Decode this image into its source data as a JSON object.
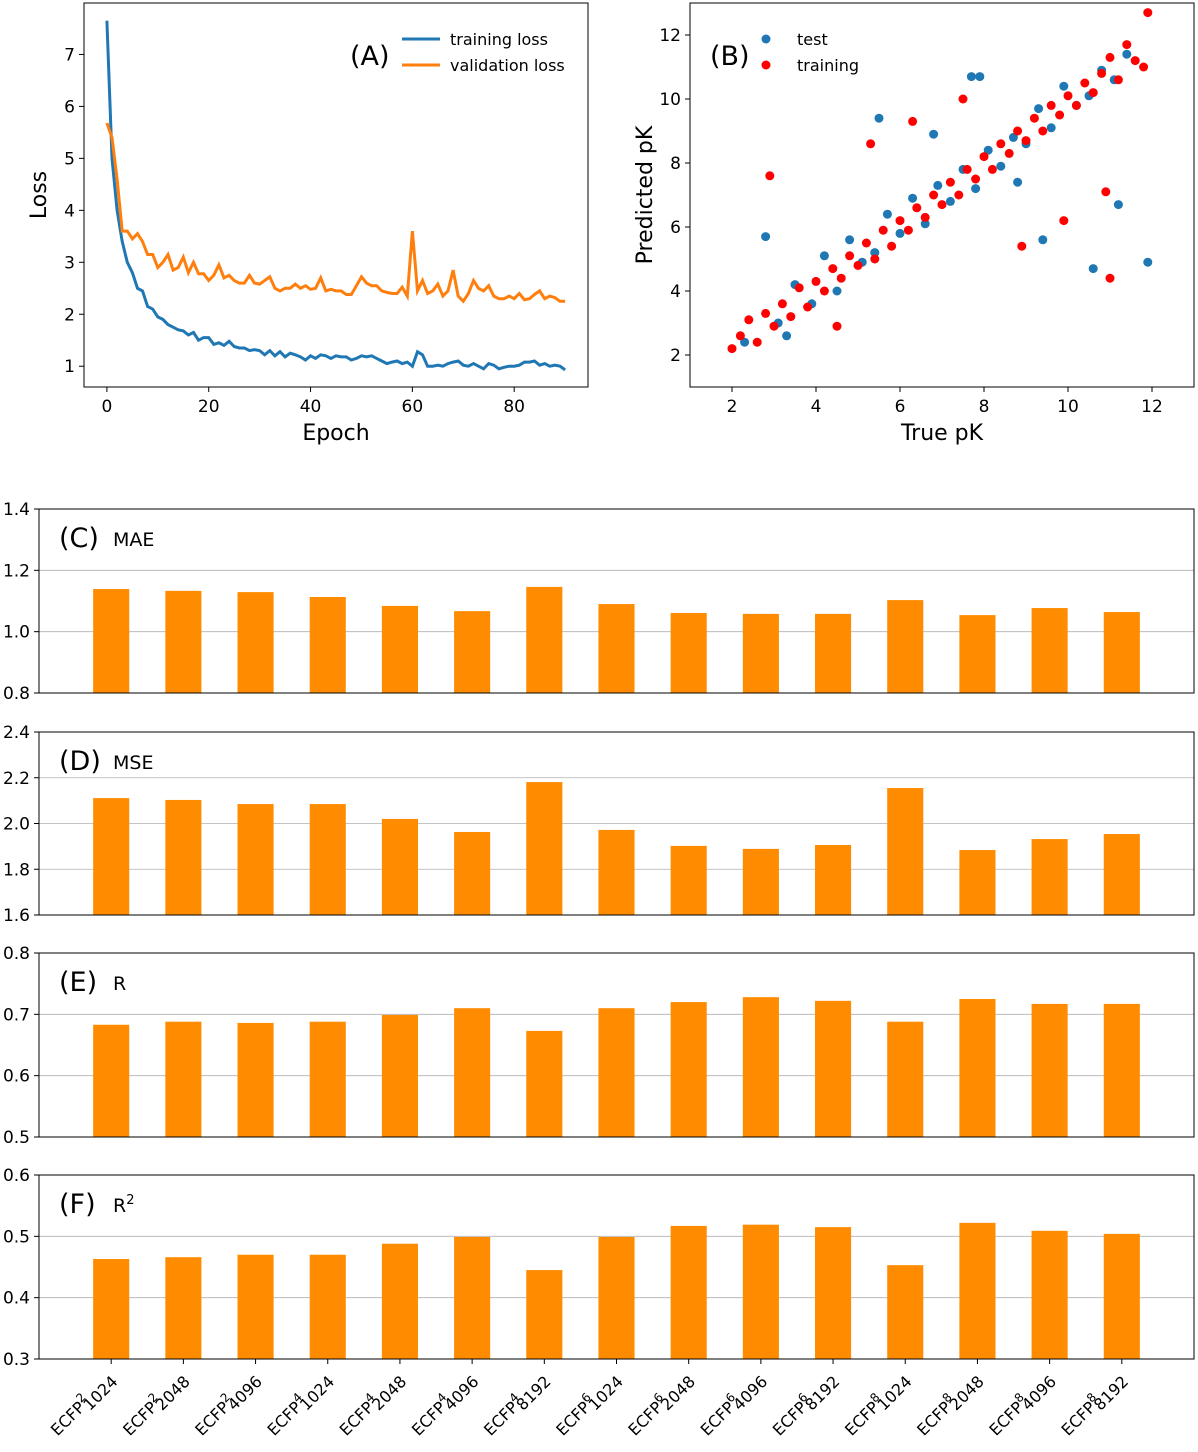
{
  "chart_data": [
    {
      "type": "line",
      "annotation": "(A)",
      "x_label": "Epoch",
      "y_label": "Loss",
      "legend": "upper right",
      "x": [
        0,
        1,
        2,
        3,
        4,
        5,
        6,
        7,
        8,
        9,
        10,
        11,
        12,
        13,
        14,
        15,
        16,
        17,
        18,
        19,
        20,
        21,
        22,
        23,
        24,
        25,
        26,
        27,
        28,
        29,
        30,
        31,
        32,
        33,
        34,
        35,
        36,
        37,
        38,
        39,
        40,
        41,
        42,
        43,
        44,
        45,
        46,
        47,
        48,
        49,
        50,
        51,
        52,
        53,
        54,
        55,
        56,
        57,
        58,
        59,
        60,
        61,
        62,
        63,
        64,
        65,
        66,
        67,
        68,
        69,
        70,
        71,
        72,
        73,
        74,
        75,
        76,
        77,
        78,
        79,
        80,
        81,
        82,
        83,
        84,
        85,
        86,
        87,
        88,
        89,
        90
      ],
      "series": [
        {
          "name": "training loss",
          "color": "#1f77b4",
          "values": [
            7.65,
            5.0,
            4.0,
            3.4,
            3.0,
            2.8,
            2.5,
            2.45,
            2.15,
            2.1,
            1.95,
            1.9,
            1.8,
            1.75,
            1.7,
            1.68,
            1.6,
            1.65,
            1.5,
            1.55,
            1.55,
            1.42,
            1.45,
            1.4,
            1.48,
            1.38,
            1.35,
            1.35,
            1.3,
            1.32,
            1.3,
            1.22,
            1.3,
            1.2,
            1.28,
            1.18,
            1.25,
            1.22,
            1.18,
            1.12,
            1.2,
            1.15,
            1.22,
            1.2,
            1.15,
            1.2,
            1.18,
            1.18,
            1.12,
            1.15,
            1.2,
            1.18,
            1.2,
            1.15,
            1.1,
            1.05,
            1.08,
            1.1,
            1.05,
            1.08,
            1.0,
            1.28,
            1.22,
            1.0,
            1.0,
            1.02,
            1.0,
            1.05,
            1.08,
            1.1,
            1.02,
            1.0,
            1.05,
            1.0,
            0.95,
            1.05,
            1.02,
            0.95,
            0.98,
            1.0,
            1.0,
            1.02,
            1.08,
            1.08,
            1.1,
            1.02,
            1.05,
            1.0,
            1.02,
            1.0,
            0.93
          ]
        },
        {
          "name": "validation loss",
          "color": "#ff7f0e",
          "values": [
            5.68,
            5.4,
            4.6,
            3.6,
            3.6,
            3.45,
            3.55,
            3.4,
            3.15,
            3.15,
            2.9,
            3.0,
            3.15,
            2.85,
            2.9,
            3.1,
            2.8,
            3.0,
            2.78,
            2.78,
            2.65,
            2.75,
            2.95,
            2.7,
            2.75,
            2.65,
            2.6,
            2.6,
            2.75,
            2.6,
            2.58,
            2.65,
            2.72,
            2.5,
            2.45,
            2.5,
            2.5,
            2.58,
            2.5,
            2.55,
            2.48,
            2.5,
            2.7,
            2.45,
            2.48,
            2.45,
            2.45,
            2.38,
            2.38,
            2.55,
            2.72,
            2.6,
            2.55,
            2.55,
            2.45,
            2.42,
            2.4,
            2.4,
            2.52,
            2.35,
            3.6,
            2.45,
            2.65,
            2.4,
            2.45,
            2.58,
            2.35,
            2.45,
            2.85,
            2.35,
            2.25,
            2.4,
            2.65,
            2.5,
            2.45,
            2.55,
            2.35,
            2.3,
            2.3,
            2.35,
            2.3,
            2.4,
            2.28,
            2.3,
            2.38,
            2.45,
            2.3,
            2.35,
            2.32,
            2.25,
            2.25
          ]
        }
      ],
      "xlim": [
        -4.5,
        94.5
      ],
      "xticks": [
        0,
        20,
        40,
        60,
        80
      ],
      "ylim": [
        0.6,
        7.99
      ],
      "yticks": [
        1,
        2,
        3,
        4,
        5,
        6,
        7
      ]
    },
    {
      "type": "scatter",
      "annotation": "(B)",
      "x_label": "True pK",
      "y_label": "Predicted pK",
      "legend": "upper left",
      "series": [
        {
          "name": "test",
          "color": "#1f77b4",
          "x": [
            2.3,
            2.8,
            3.1,
            3.5,
            3.9,
            4.2,
            4.5,
            4.8,
            5.1,
            5.4,
            5.7,
            6.0,
            6.3,
            6.6,
            6.9,
            7.2,
            7.5,
            7.8,
            8.1,
            8.4,
            8.7,
            9.0,
            9.3,
            9.6,
            9.9,
            10.2,
            10.5,
            10.8,
            11.1,
            11.4,
            11.9,
            7.7,
            7.9,
            5.5,
            9.4,
            10.6,
            11.2,
            3.3,
            6.8,
            8.8
          ],
          "values": [
            2.4,
            5.7,
            3.0,
            4.2,
            3.6,
            5.1,
            4.0,
            5.6,
            4.9,
            5.2,
            6.4,
            5.8,
            6.9,
            6.1,
            7.3,
            6.8,
            7.8,
            7.2,
            8.4,
            7.9,
            8.8,
            8.6,
            9.7,
            9.1,
            10.4,
            9.8,
            10.1,
            10.9,
            10.6,
            11.4,
            4.9,
            10.7,
            10.7,
            9.4,
            5.6,
            4.7,
            6.7,
            2.6,
            8.9,
            7.4
          ]
        },
        {
          "name": "training",
          "color": "#ff0000",
          "x": [
            2.0,
            2.2,
            2.4,
            2.6,
            2.8,
            3.0,
            3.2,
            3.4,
            3.6,
            3.8,
            4.0,
            4.2,
            4.4,
            4.6,
            4.8,
            5.0,
            5.2,
            5.4,
            5.6,
            5.8,
            6.0,
            6.2,
            6.4,
            6.6,
            6.8,
            7.0,
            7.2,
            7.4,
            7.6,
            7.8,
            8.0,
            8.2,
            8.4,
            8.6,
            8.8,
            9.0,
            9.2,
            9.4,
            9.6,
            9.8,
            10.0,
            10.2,
            10.4,
            10.6,
            10.8,
            11.0,
            11.2,
            11.4,
            11.6,
            11.8,
            11.9,
            11.0,
            2.9,
            6.3,
            8.9,
            4.5,
            10.9,
            7.5,
            5.3,
            9.9
          ],
          "values": [
            2.2,
            2.6,
            3.1,
            2.4,
            3.3,
            2.9,
            3.6,
            3.2,
            4.1,
            3.5,
            4.3,
            4.0,
            4.7,
            4.4,
            5.1,
            4.8,
            5.5,
            5.0,
            5.9,
            5.4,
            6.2,
            5.9,
            6.6,
            6.3,
            7.0,
            6.7,
            7.4,
            7.0,
            7.8,
            7.5,
            8.2,
            7.8,
            8.6,
            8.3,
            9.0,
            8.7,
            9.4,
            9.0,
            9.8,
            9.5,
            10.1,
            9.8,
            10.5,
            10.2,
            10.8,
            11.3,
            10.6,
            11.7,
            11.2,
            11.0,
            12.7,
            4.4,
            7.6,
            9.3,
            5.4,
            2.9,
            7.1,
            10.0,
            8.6,
            6.2
          ]
        }
      ],
      "xlim": [
        1.0,
        13.0
      ],
      "xticks": [
        2,
        4,
        6,
        8,
        10,
        12
      ],
      "ylim": [
        1.0,
        13.0
      ],
      "yticks": [
        2,
        4,
        6,
        8,
        10,
        12
      ]
    },
    {
      "type": "bar",
      "panel_label": "(C)",
      "metric": "MAE",
      "color": "#ff8c00",
      "grid": true,
      "values": [
        1.139,
        1.133,
        1.129,
        1.113,
        1.084,
        1.067,
        1.146,
        1.09,
        1.061,
        1.058,
        1.058,
        1.103,
        1.054,
        1.077,
        1.064
      ],
      "ylim": [
        0.8,
        1.4
      ],
      "yticks": [
        {
          "value": 0.8,
          "label": "0.8"
        },
        {
          "value": 1.0,
          "label": "1.0"
        },
        {
          "value": 1.2,
          "label": "1.2"
        },
        {
          "value": 1.4,
          "label": "1.4"
        }
      ]
    },
    {
      "type": "bar",
      "panel_label": "(D)",
      "metric": "MSE",
      "color": "#ff8c00",
      "grid": true,
      "values": [
        2.111,
        2.103,
        2.085,
        2.085,
        2.02,
        1.963,
        2.181,
        1.972,
        1.902,
        1.889,
        1.906,
        2.155,
        1.884,
        1.932,
        1.954
      ],
      "ylim": [
        1.6,
        2.4
      ],
      "yticks": [
        {
          "value": 1.6,
          "label": "1.6"
        },
        {
          "value": 1.8,
          "label": "1.8"
        },
        {
          "value": 2.0,
          "label": "2.0"
        },
        {
          "value": 2.2,
          "label": "2.2"
        },
        {
          "value": 2.4,
          "label": "2.4"
        }
      ]
    },
    {
      "type": "bar",
      "panel_label": "(E)",
      "metric": "R",
      "color": "#ff8c00",
      "grid": true,
      "values": [
        0.683,
        0.688,
        0.686,
        0.688,
        0.699,
        0.71,
        0.673,
        0.71,
        0.72,
        0.728,
        0.722,
        0.688,
        0.725,
        0.717,
        0.717
      ],
      "ylim": [
        0.5,
        0.8
      ],
      "yticks": [
        0.5,
        0.6,
        0.7,
        0.8
      ]
    },
    {
      "type": "bar",
      "panel_label": "(F)",
      "metric": "R",
      "metric_sup": "2",
      "color": "#ff8c00",
      "grid": true,
      "categories": [
        {
          "text": "ECFP",
          "sup": "2",
          "sub": "1024"
        },
        {
          "text": "ECFP",
          "sup": "2",
          "sub": "2048"
        },
        {
          "text": "ECFP",
          "sup": "2",
          "sub": "4096"
        },
        {
          "text": "ECFP",
          "sup": "4",
          "sub": "1024"
        },
        {
          "text": "ECFP",
          "sup": "4",
          "sub": "2048"
        },
        {
          "text": "ECFP",
          "sup": "4",
          "sub": "4096"
        },
        {
          "text": "ECFP",
          "sup": "4",
          "sub": "8192"
        },
        {
          "text": "ECFP",
          "sup": "6",
          "sub": "1024"
        },
        {
          "text": "ECFP",
          "sup": "6",
          "sub": "2048"
        },
        {
          "text": "ECFP",
          "sup": "6",
          "sub": "4096"
        },
        {
          "text": "ECFP",
          "sup": "6",
          "sub": "8192"
        },
        {
          "text": "ECFP",
          "sup": "8",
          "sub": "1024"
        },
        {
          "text": "ECFP",
          "sup": "8",
          "sub": "2048"
        },
        {
          "text": "ECFP",
          "sup": "8",
          "sub": "4096"
        },
        {
          "text": "ECFP",
          "sup": "8",
          "sub": "8192"
        }
      ],
      "values": [
        0.463,
        0.466,
        0.47,
        0.47,
        0.488,
        0.499,
        0.445,
        0.499,
        0.517,
        0.519,
        0.515,
        0.453,
        0.522,
        0.509,
        0.504
      ],
      "ylim": [
        0.3,
        0.6
      ],
      "yticks": [
        0.3,
        0.4,
        0.5,
        0.6
      ]
    }
  ]
}
